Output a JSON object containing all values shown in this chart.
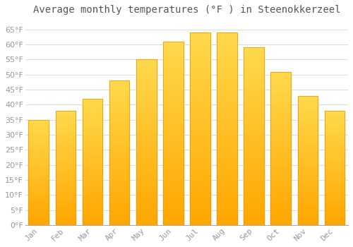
{
  "title": "Average monthly temperatures (°F ) in Steenokkerzeel",
  "months": [
    "Jan",
    "Feb",
    "Mar",
    "Apr",
    "May",
    "Jun",
    "Jul",
    "Aug",
    "Sep",
    "Oct",
    "Nov",
    "Dec"
  ],
  "values": [
    35,
    38,
    42,
    48,
    55,
    61,
    64,
    64,
    59,
    51,
    43,
    38
  ],
  "bar_color_top": "#FFD966",
  "bar_color_bottom": "#FFA500",
  "bar_edge_color": "#E8960A",
  "background_color": "#FFFFFF",
  "grid_color": "#DDDDDD",
  "ylim": [
    0,
    68
  ],
  "yticks": [
    0,
    5,
    10,
    15,
    20,
    25,
    30,
    35,
    40,
    45,
    50,
    55,
    60,
    65
  ],
  "title_fontsize": 10,
  "tick_fontsize": 8,
  "tick_color": "#999999",
  "title_color": "#555555"
}
